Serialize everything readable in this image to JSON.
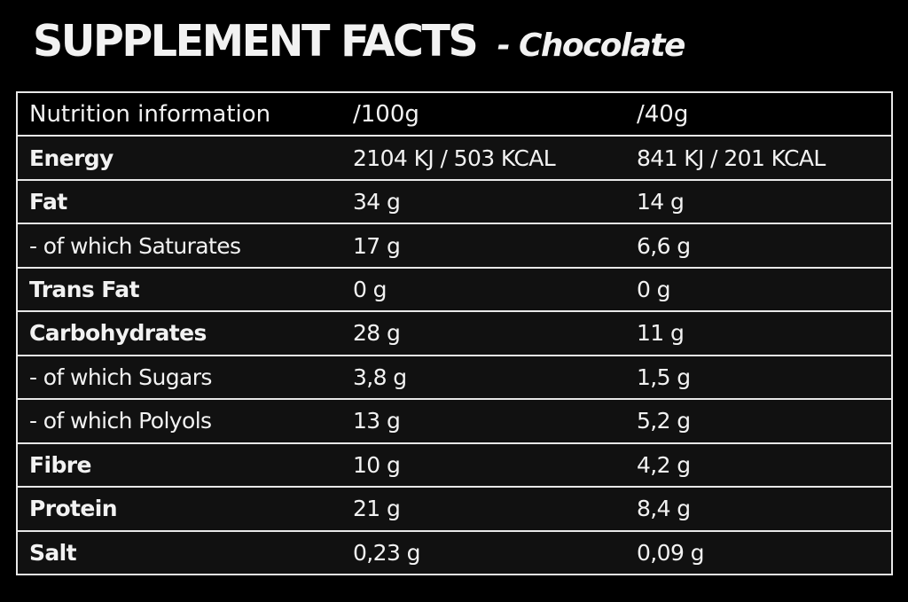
{
  "title": {
    "main": "SUPPLEMENT FACTS",
    "sub": "- Chocolate"
  },
  "colors": {
    "background": "#000000",
    "row_background": "#111111",
    "header_background": "#000000",
    "border": "#e8e8e8",
    "text": "#f2f2f2"
  },
  "table": {
    "header": {
      "label": "Nutrition information",
      "per_100g": "/100g",
      "per_40g": "/40g"
    },
    "rows": [
      {
        "label": "Energy",
        "per_100g": "2104 KJ / 503 KCAL",
        "per_40g": "841 KJ / 201 KCAL",
        "bold": true
      },
      {
        "label": "Fat",
        "per_100g": "34 g",
        "per_40g": "14 g",
        "bold": true
      },
      {
        "label": "- of which Saturates",
        "per_100g": "17 g",
        "per_40g": "6,6 g",
        "bold": false
      },
      {
        "label": "Trans Fat",
        "per_100g": "0 g",
        "per_40g": "0 g",
        "bold": true
      },
      {
        "label": "Carbohydrates",
        "per_100g": "28 g",
        "per_40g": "11 g",
        "bold": true
      },
      {
        "label": "- of which Sugars",
        "per_100g": "3,8 g",
        "per_40g": "1,5 g",
        "bold": false
      },
      {
        "label": "- of which Polyols",
        "per_100g": "13 g",
        "per_40g": "5,2 g",
        "bold": false
      },
      {
        "label": "Fibre",
        "per_100g": "10 g",
        "per_40g": "4,2 g",
        "bold": true
      },
      {
        "label": "Protein",
        "per_100g": "21 g",
        "per_40g": "8,4 g",
        "bold": true
      },
      {
        "label": "Salt",
        "per_100g": "0,23 g",
        "per_40g": "0,09 g",
        "bold": true
      }
    ]
  }
}
